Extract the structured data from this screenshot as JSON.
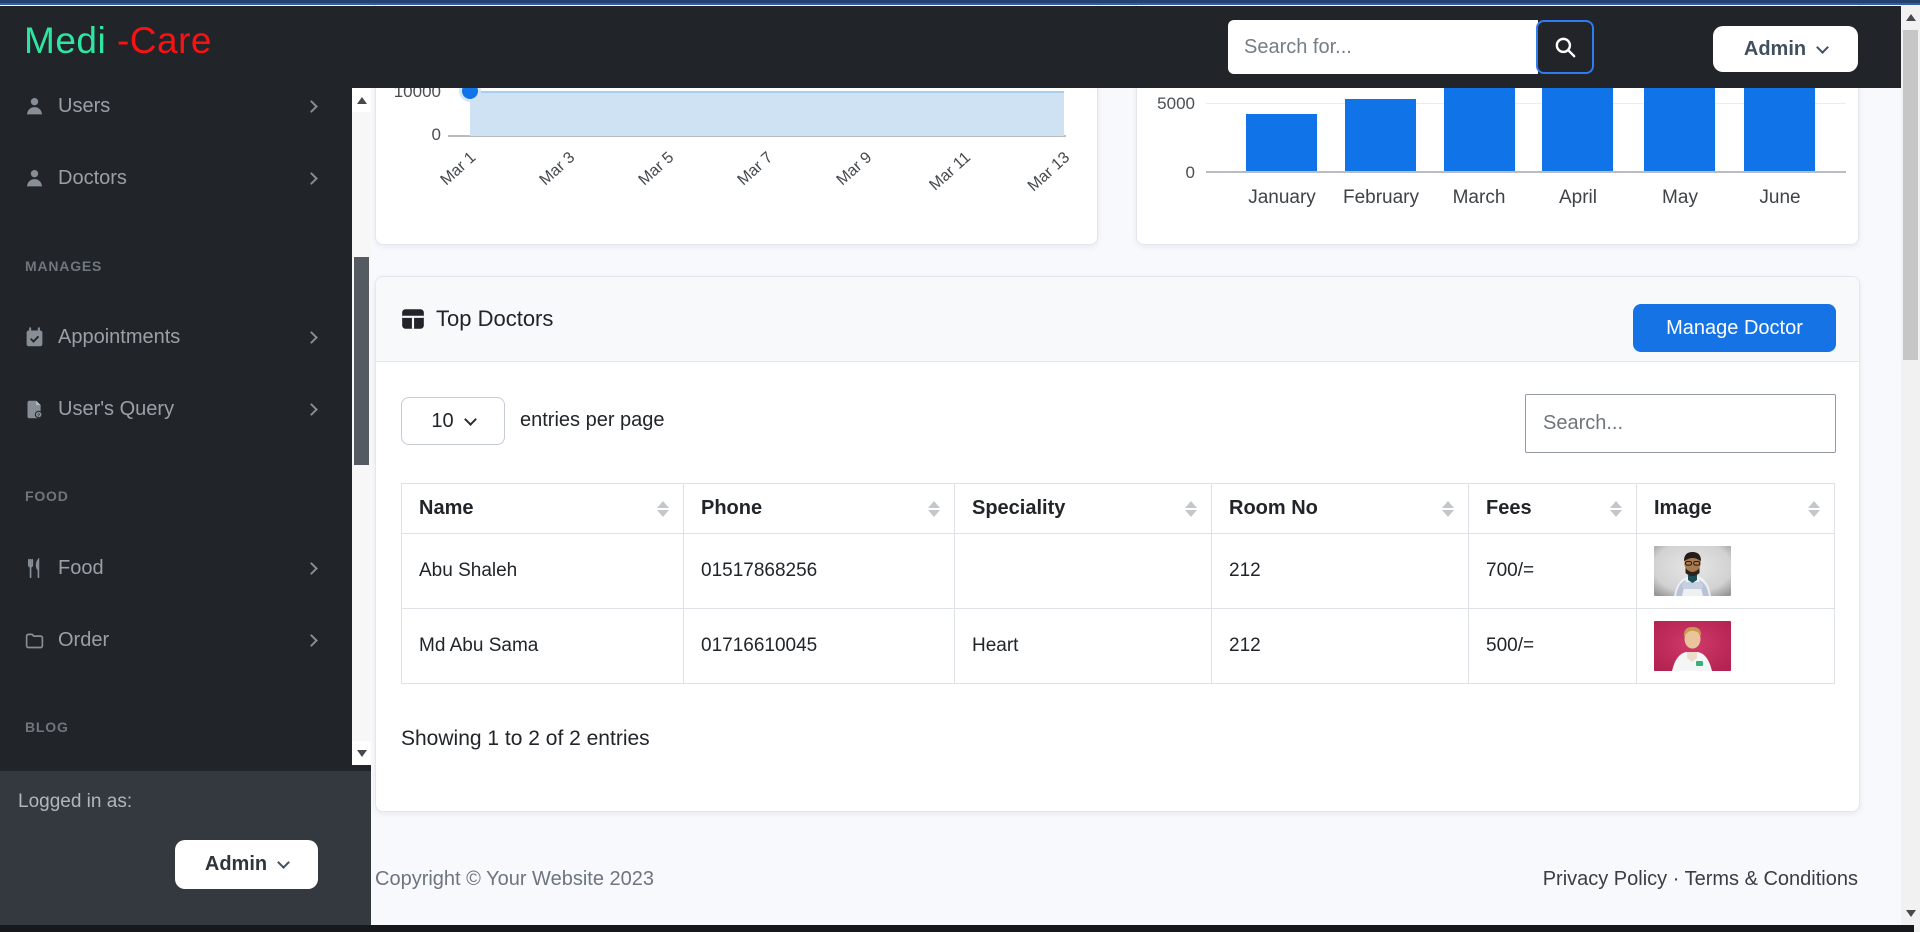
{
  "topbar": {
    "search_placeholder": "Search for...",
    "user_button_label": "Admin",
    "icons": [
      "hamburger-icon",
      "search-icon",
      "chevron-down-icon"
    ]
  },
  "sidebar": {
    "brand": {
      "green_part": "Medi",
      "red_part": "-Care"
    },
    "groups": [
      {
        "heading": "",
        "items": [
          {
            "label": "Users",
            "icon": "user-icon"
          },
          {
            "label": "Doctors",
            "icon": "user-icon"
          }
        ]
      },
      {
        "heading": "MANAGES",
        "items": [
          {
            "label": "Appointments",
            "icon": "calendar-check-icon"
          },
          {
            "label": "User's Query",
            "icon": "file-question-icon"
          }
        ]
      },
      {
        "heading": "FOOD",
        "items": [
          {
            "label": "Food",
            "icon": "utensils-icon"
          },
          {
            "label": "Order",
            "icon": "folder-icon"
          }
        ]
      },
      {
        "heading": "BLOG",
        "items": []
      }
    ],
    "footer": {
      "logged_in_label": "Logged in as:",
      "user_button_label": "Admin"
    }
  },
  "chart_data": [
    {
      "type": "area",
      "x": [
        "Mar 1",
        "Mar 3",
        "Mar 5",
        "Mar 7",
        "Mar 9",
        "Mar 11",
        "Mar 13"
      ],
      "series": [
        {
          "name": "visible series",
          "values": [
            10000,
            10000,
            10000,
            10000,
            10000,
            10000,
            10000
          ]
        }
      ],
      "ytick_labels": [
        "10000",
        "0"
      ],
      "visible_yticks": [
        10000,
        0
      ],
      "marker": {
        "x": "Mar 1",
        "value": 10000
      },
      "note": "Top of card cut off by toolbar; flat light-blue area at 10000 with one blue point marker at Mar 1.",
      "grid": false,
      "legend": false,
      "accent_color": "#1173e8",
      "fill_color": "#cfe2f4"
    },
    {
      "type": "bar",
      "categories": [
        "January",
        "February",
        "March",
        "April",
        "May",
        "June"
      ],
      "values": [
        4200,
        5300,
        6200,
        6200,
        6200,
        6200
      ],
      "clipped_at_top": [
        false,
        false,
        true,
        true,
        true,
        true
      ],
      "ytick_labels": [
        "5000",
        "0"
      ],
      "visible_yticks": [
        5000,
        0
      ],
      "ylim_visible": [
        0,
        5800
      ],
      "note": "March–June bars are cut off by the toolbar; 4200/5300 estimated from axis.",
      "grid": true,
      "legend": false,
      "bar_color": "#1173e8"
    }
  ],
  "top_doctors": {
    "title": "Top Doctors",
    "title_icon": "table-icon",
    "manage_button_label": "Manage Doctor",
    "page_size_value": "10",
    "page_size_label": "entries per page",
    "search_placeholder": "Search...",
    "columns": [
      "Name",
      "Phone",
      "Speciality",
      "Room No",
      "Fees",
      "Image"
    ],
    "rows": [
      {
        "name": "Abu Shaleh",
        "phone": "01517868256",
        "speciality": "",
        "room_no": "212",
        "fees": "700/=",
        "image": "male-doctor-glasses-gray-background"
      },
      {
        "name": "Md Abu Sama",
        "phone": "01716610045",
        "speciality": "Heart",
        "room_no": "212",
        "fees": "500/=",
        "image": "young-male-doctor-pink-background"
      }
    ],
    "summary": "Showing 1 to 2 of 2 entries"
  },
  "page_footer": {
    "copyright": "Copyright © Your Website 2023",
    "privacy_link": "Privacy Policy",
    "separator": " · ",
    "terms_link": "Terms & Conditions"
  },
  "colors": {
    "brand_green": "#2ee6a2",
    "brand_red": "#fa1111",
    "primary_blue": "#1673e6",
    "dark": "#212529",
    "main_background": "#f8f9fc"
  }
}
